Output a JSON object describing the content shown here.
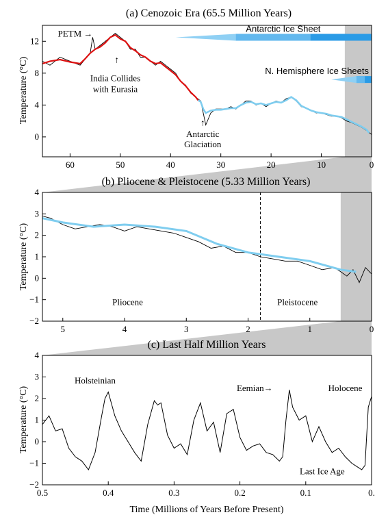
{
  "colors": {
    "raw": "#000000",
    "early_smooth": "#dd1111",
    "late_smooth": "#7fcdef",
    "ice_light": "#8fd0f4",
    "ice_dark": "#2a9be6",
    "highlight": "#c8c8c8"
  },
  "shared_ylabel": "Temperature (°C)",
  "shared_xlabel": "Time (Millions of Years Before Present)",
  "chart_data": [
    {
      "type": "line",
      "title": "(a) Cenozoic Era (65.5 Million Years)",
      "ylabel": "Temperature (°C)",
      "xlim": [
        65.5,
        0
      ],
      "ylim": [
        -2.5,
        14
      ],
      "xticks": [
        60,
        50,
        40,
        30,
        20,
        10,
        0
      ],
      "xtick_labels": [
        "60",
        "50",
        "40",
        "30",
        "20",
        "10",
        "0"
      ],
      "yticks": [
        0,
        4,
        8,
        12
      ],
      "ytick_labels": [
        "0",
        "4",
        "8",
        "12"
      ],
      "highlight_range": [
        5.33,
        0
      ],
      "series": [
        {
          "role": "raw",
          "x": [
            65.5,
            64,
            62,
            60,
            58,
            56,
            55.5,
            55,
            54,
            53,
            52,
            51,
            50,
            49,
            48,
            47,
            46,
            45,
            44,
            43,
            42,
            41,
            40,
            39,
            38,
            37,
            36,
            35,
            34,
            33.5,
            33,
            32,
            31,
            30,
            29,
            28,
            27,
            26,
            25,
            24,
            23,
            22,
            21,
            20,
            19,
            18,
            17,
            16,
            15,
            14,
            13,
            12,
            11,
            10,
            9,
            8,
            7,
            6,
            5,
            4,
            3,
            2,
            1,
            0
          ],
          "y": [
            9.5,
            9,
            10,
            9.5,
            9,
            10.5,
            12.5,
            11,
            11.5,
            12,
            12.5,
            13,
            12.5,
            12,
            11,
            11,
            10,
            10,
            9.5,
            9,
            9.5,
            9,
            8.5,
            8,
            7,
            6.5,
            5.5,
            5,
            4.5,
            3,
            1.5,
            3,
            3.5,
            3.5,
            3.5,
            3.8,
            3.5,
            4,
            4.5,
            4.5,
            4,
            4.2,
            3.8,
            4.2,
            4.5,
            4.3,
            4.8,
            5,
            4.5,
            3.8,
            3.6,
            3.3,
            3,
            3,
            2.8,
            2.6,
            2.6,
            2.4,
            2,
            1.8,
            1.5,
            1.2,
            0.8,
            0.3
          ]
        },
        {
          "role": "smooth-early",
          "x": [
            65.5,
            64,
            62,
            60,
            58,
            57,
            56,
            55,
            54,
            53,
            52,
            51,
            50,
            49,
            48,
            47,
            46,
            45,
            44,
            43,
            42,
            41,
            40,
            39,
            38,
            37,
            36,
            35,
            34.5
          ],
          "y": [
            9.2,
            9.5,
            9.7,
            9.4,
            9.2,
            9.8,
            10.5,
            11,
            11.3,
            11.8,
            12.5,
            12.8,
            12.3,
            12,
            11.2,
            10.8,
            10.3,
            10,
            9.5,
            9.2,
            9.3,
            8.8,
            8.3,
            7.8,
            7,
            6.4,
            5.6,
            5,
            4.6
          ]
        },
        {
          "role": "smooth-late",
          "x": [
            34.5,
            34,
            33.5,
            33,
            32,
            31,
            30,
            29,
            28,
            27,
            26,
            25,
            24,
            23,
            22,
            21,
            20,
            19,
            18,
            17,
            16,
            15,
            14,
            13,
            12,
            11,
            10,
            9,
            8,
            7,
            6,
            5,
            4,
            3,
            2,
            1,
            0.5
          ],
          "y": [
            4.6,
            4.4,
            3.5,
            3,
            3.3,
            3.4,
            3.4,
            3.5,
            3.6,
            3.6,
            4,
            4.3,
            4.4,
            4.1,
            4.2,
            4,
            4.2,
            4.4,
            4.3,
            4.6,
            5,
            4.6,
            3.9,
            3.6,
            3.3,
            3.1,
            3,
            2.9,
            2.7,
            2.6,
            2.5,
            2.2,
            1.9,
            1.6,
            1.3,
            0.9,
            0.5
          ]
        }
      ],
      "ice_sheets": [
        {
          "label": "Antarctic Ice Sheet",
          "start": 39,
          "full_from": 27,
          "end": 0
        },
        {
          "label": "N. Hemisphere Ice Sheets",
          "start": 8,
          "full_from": 3,
          "end": 0
        }
      ],
      "annotations": [
        {
          "text": "PETM →",
          "x": 55.5,
          "y": 12.6
        },
        {
          "text": "India Collides",
          "x": 51,
          "y": 7
        },
        {
          "text": "with Eurasia",
          "x": 51,
          "y": 5.6
        },
        {
          "text": "Antarctic",
          "x": 33.6,
          "y": 0
        },
        {
          "text": "Glaciation",
          "x": 33.6,
          "y": -1.3
        }
      ]
    },
    {
      "type": "line",
      "title": "(b) Pliocene & Pleistocene (5.33 Million Years)",
      "ylabel": "Temperature (°C)",
      "xlim": [
        5.33,
        0
      ],
      "ylim": [
        -2,
        4
      ],
      "xticks": [
        5,
        4,
        3,
        2,
        1,
        0
      ],
      "xtick_labels": [
        "5",
        "4",
        "3",
        "2",
        "1",
        "0"
      ],
      "yticks": [
        -2,
        -1,
        0,
        1,
        2,
        3,
        4
      ],
      "ytick_labels": [
        "−2",
        "−1",
        "0",
        "1",
        "2",
        "3",
        "4"
      ],
      "highlight_range": [
        0.5,
        0
      ],
      "divider_x": 1.8,
      "series": [
        {
          "role": "raw",
          "x": [
            5.33,
            5.2,
            5,
            4.8,
            4.6,
            4.4,
            4.2,
            4,
            3.8,
            3.6,
            3.4,
            3.2,
            3,
            2.8,
            2.6,
            2.4,
            2.2,
            2,
            1.8,
            1.6,
            1.4,
            1.2,
            1,
            0.8,
            0.6,
            0.5,
            0.4,
            0.3,
            0.2,
            0.1,
            0
          ],
          "y": [
            2.9,
            2.8,
            2.5,
            2.3,
            2.4,
            2.5,
            2.4,
            2.2,
            2.4,
            2.3,
            2.2,
            2.1,
            1.9,
            1.7,
            1.4,
            1.5,
            1.2,
            1.2,
            1,
            0.9,
            0.8,
            0.8,
            0.6,
            0.4,
            0.5,
            0.3,
            0.1,
            0.4,
            -0.2,
            0.5,
            0.2
          ]
        },
        {
          "role": "smooth",
          "x": [
            5.33,
            5,
            4.5,
            4,
            3.5,
            3,
            2.5,
            2,
            1.5,
            1,
            0.5,
            0.25
          ],
          "y": [
            2.8,
            2.6,
            2.4,
            2.5,
            2.4,
            2.2,
            1.6,
            1.2,
            1,
            0.8,
            0.4,
            0.3
          ]
        }
      ],
      "annotations": [
        {
          "text": "Pliocene",
          "x": 3.95,
          "y": -1.25
        },
        {
          "text": "Pleistocene",
          "x": 1.2,
          "y": -1.25
        }
      ]
    },
    {
      "type": "line",
      "title": "(c) Last Half Million Years",
      "ylabel": "Temperature (°C)",
      "xlabel": "Time (Millions of Years Before Present)",
      "xlim": [
        0.5,
        0
      ],
      "ylim": [
        -2,
        4
      ],
      "xticks": [
        0.5,
        0.4,
        0.3,
        0.2,
        0.1,
        0
      ],
      "xtick_labels": [
        "0.5",
        "0.4",
        "0.3",
        "0.2",
        "0.1",
        "0."
      ],
      "yticks": [
        -2,
        -1,
        0,
        1,
        2,
        3,
        4
      ],
      "ytick_labels": [
        "−2",
        "−1",
        "0",
        "1",
        "2",
        "3",
        "4"
      ],
      "series": [
        {
          "role": "raw",
          "x": [
            0.5,
            0.49,
            0.48,
            0.47,
            0.46,
            0.45,
            0.44,
            0.43,
            0.42,
            0.41,
            0.405,
            0.4,
            0.39,
            0.38,
            0.37,
            0.36,
            0.35,
            0.34,
            0.33,
            0.325,
            0.32,
            0.31,
            0.3,
            0.29,
            0.28,
            0.27,
            0.26,
            0.25,
            0.24,
            0.23,
            0.22,
            0.21,
            0.2,
            0.19,
            0.18,
            0.17,
            0.16,
            0.15,
            0.14,
            0.135,
            0.13,
            0.125,
            0.12,
            0.11,
            0.1,
            0.09,
            0.08,
            0.07,
            0.06,
            0.05,
            0.04,
            0.03,
            0.02,
            0.015,
            0.01,
            0.005,
            0
          ],
          "y": [
            0.8,
            1.2,
            0.5,
            0.6,
            -0.3,
            -0.7,
            -0.9,
            -1.3,
            -0.5,
            1.2,
            2,
            2.3,
            1.2,
            0.5,
            0,
            -0.5,
            -0.9,
            0.8,
            1.9,
            1.7,
            1.8,
            0.3,
            -0.3,
            -0.1,
            -0.6,
            1,
            1.8,
            0.5,
            0.9,
            -0.5,
            1.3,
            1.5,
            0.2,
            -0.4,
            -0.2,
            -0.1,
            -0.5,
            -0.6,
            -0.9,
            -0.7,
            1,
            2.4,
            1.6,
            1,
            1.2,
            0,
            0.7,
            0,
            -0.5,
            -0.3,
            -0.7,
            -1,
            -1.2,
            -1.3,
            -1.1,
            1.6,
            2.1
          ]
        }
      ],
      "annotations": [
        {
          "text": "Holsteinian",
          "x": 0.42,
          "y": 2.7
        },
        {
          "text": "Eemian→",
          "x": 0.15,
          "y": 2.35
        },
        {
          "text": "Holocene",
          "x": 0.04,
          "y": 2.35
        },
        {
          "text": "Last Ice Age",
          "x": 0.075,
          "y": -1.5
        }
      ]
    }
  ]
}
